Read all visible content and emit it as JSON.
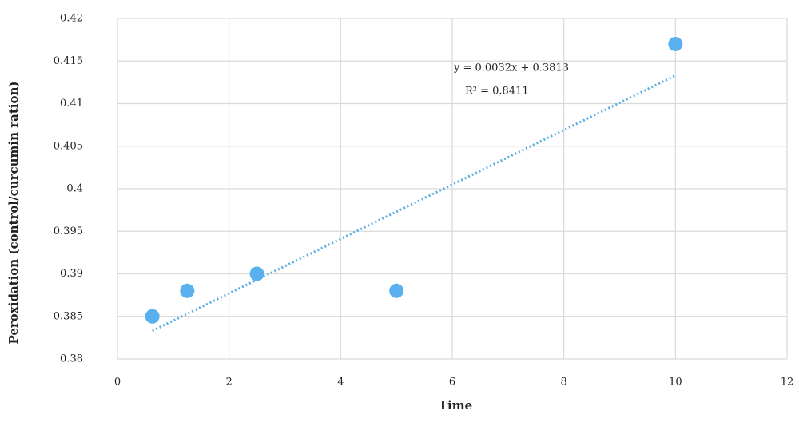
{
  "chart_data": {
    "type": "scatter",
    "x_label": "Time",
    "y_label": "Peroxidation (control/curcumin ration)",
    "series": [
      {
        "color": "#5ab0ef",
        "x": [
          0.625,
          1.25,
          2.5,
          5,
          10
        ],
        "values": [
          0.385,
          0.388,
          0.39,
          0.388,
          0.417
        ]
      }
    ],
    "trendline": {
      "slope": 0.0032,
      "intercept": 0.3813,
      "color": "#5aaee0",
      "equation": "y = 0.0032x + 0.3813",
      "r2": "R² =  0.8411"
    },
    "xlim": [
      0,
      12
    ],
    "xticks": [
      0,
      2,
      4,
      6,
      8,
      10,
      12
    ],
    "ylim": [
      0.38,
      0.42
    ],
    "yticks": [
      0.38,
      0.385,
      0.39,
      0.395,
      0.4,
      0.405,
      0.41,
      0.415,
      0.42
    ],
    "grid": true
  }
}
